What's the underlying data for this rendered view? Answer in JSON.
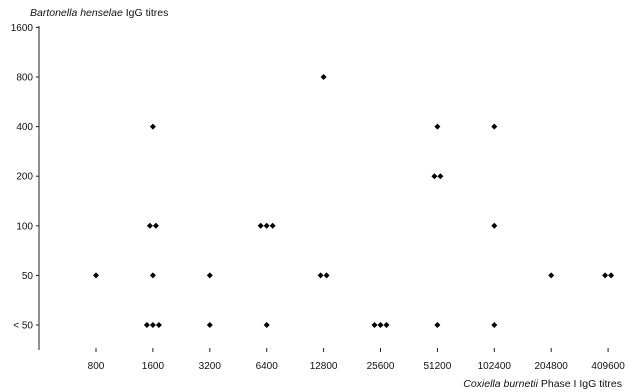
{
  "chart_data": {
    "type": "scatter",
    "title": "",
    "ylabel_italic": "Bartonella henselae",
    "ylabel_rest": " IgG titres",
    "xlabel_italic": "Coxiella burnetii",
    "xlabel_rest": " Phase I IgG titres",
    "x_categories": [
      "800",
      "1600",
      "3200",
      "6400",
      "12800",
      "25600",
      "51200",
      "102400",
      "204800",
      "409600"
    ],
    "y_categories": [
      "< 50",
      "50",
      "100",
      "200",
      "400",
      "800",
      "1600"
    ],
    "grid": false,
    "marker": "diamond",
    "points": [
      {
        "x": "800",
        "y": "50"
      },
      {
        "x": "1600",
        "y": "< 50"
      },
      {
        "x": "1600",
        "y": "< 50"
      },
      {
        "x": "1600",
        "y": "< 50"
      },
      {
        "x": "1600",
        "y": "50"
      },
      {
        "x": "1600",
        "y": "100"
      },
      {
        "x": "1600",
        "y": "100"
      },
      {
        "x": "1600",
        "y": "400"
      },
      {
        "x": "3200",
        "y": "< 50"
      },
      {
        "x": "3200",
        "y": "50"
      },
      {
        "x": "6400",
        "y": "< 50"
      },
      {
        "x": "6400",
        "y": "100"
      },
      {
        "x": "6400",
        "y": "100"
      },
      {
        "x": "6400",
        "y": "100"
      },
      {
        "x": "12800",
        "y": "50"
      },
      {
        "x": "12800",
        "y": "50"
      },
      {
        "x": "12800",
        "y": "800"
      },
      {
        "x": "25600",
        "y": "< 50"
      },
      {
        "x": "25600",
        "y": "< 50"
      },
      {
        "x": "25600",
        "y": "< 50"
      },
      {
        "x": "51200",
        "y": "< 50"
      },
      {
        "x": "51200",
        "y": "200"
      },
      {
        "x": "51200",
        "y": "200"
      },
      {
        "x": "51200",
        "y": "400"
      },
      {
        "x": "102400",
        "y": "< 50"
      },
      {
        "x": "102400",
        "y": "100"
      },
      {
        "x": "102400",
        "y": "400"
      },
      {
        "x": "204800",
        "y": "50"
      },
      {
        "x": "409600",
        "y": "50"
      },
      {
        "x": "409600",
        "y": "50"
      }
    ]
  }
}
